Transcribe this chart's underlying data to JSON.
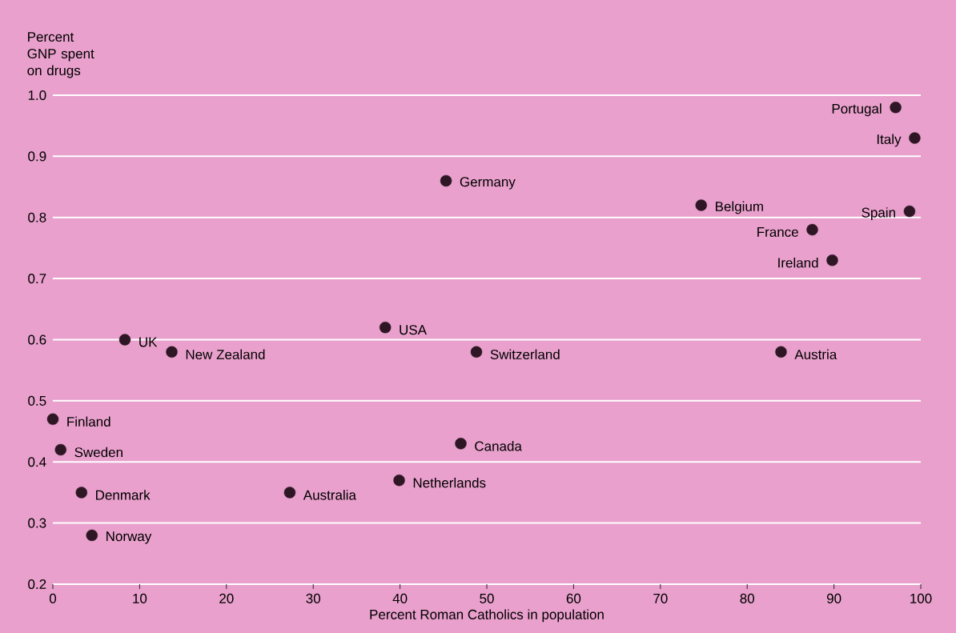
{
  "chart_data": {
    "type": "scatter",
    "xlabel": "Percent Roman Catholics in population",
    "ylabel": "Percent GNP spent on drugs",
    "x": [
      97.1,
      99.3,
      98.7,
      45.3,
      74.7,
      87.5,
      89.8,
      83.9,
      8.3,
      13.7,
      38.3,
      48.8,
      0,
      0.9,
      47,
      39.9,
      3.3,
      27.3,
      4.5
    ],
    "values": [
      0.98,
      0.93,
      0.81,
      0.86,
      0.82,
      0.78,
      0.73,
      0.58,
      0.6,
      0.58,
      0.62,
      0.58,
      0.47,
      0.42,
      0.43,
      0.37,
      0.35,
      0.35,
      0.28
    ],
    "color": "#2e1624",
    "grid": "y",
    "xlim": [
      0,
      100
    ],
    "ylim": [
      0.2,
      1.0
    ],
    "xticks": [
      0,
      10,
      20,
      30,
      40,
      50,
      60,
      70,
      80,
      90,
      100
    ],
    "yticks": [
      {
        "value": 0.2,
        "label": "0.2"
      },
      {
        "value": 0.3,
        "label": "0.3"
      },
      {
        "value": 0.4,
        "label": "0.4"
      },
      {
        "value": 0.5,
        "label": "0.5"
      },
      {
        "value": 0.6,
        "label": "0.6"
      },
      {
        "value": 0.7,
        "label": "0.7"
      },
      {
        "value": 0.8,
        "label": "0.8"
      },
      {
        "value": 0.9,
        "label": "0.9"
      },
      {
        "value": 1.0,
        "label": "1.0"
      }
    ],
    "annotations": [
      {
        "text": "Portugal",
        "x": 97.1,
        "y": 0.98
      },
      {
        "text": "Italy",
        "x": 99.3,
        "y": 0.93
      },
      {
        "text": "Spain",
        "x": 98.7,
        "y": 0.81
      },
      {
        "text": "Germany",
        "x": 45.3,
        "y": 0.86
      },
      {
        "text": "Belgium",
        "x": 74.7,
        "y": 0.82
      },
      {
        "text": "France",
        "x": 87.5,
        "y": 0.78
      },
      {
        "text": "Ireland",
        "x": 89.8,
        "y": 0.73
      },
      {
        "text": "Austria",
        "x": 83.9,
        "y": 0.58
      },
      {
        "text": "UK",
        "x": 8.3,
        "y": 0.6
      },
      {
        "text": "New Zealand",
        "x": 13.7,
        "y": 0.58
      },
      {
        "text": "USA",
        "x": 38.3,
        "y": 0.62
      },
      {
        "text": "Switzerland",
        "x": 48.8,
        "y": 0.58
      },
      {
        "text": "Finland",
        "x": 0,
        "y": 0.47
      },
      {
        "text": "Sweden",
        "x": 0.9,
        "y": 0.42
      },
      {
        "text": "Canada",
        "x": 47,
        "y": 0.43
      },
      {
        "text": "Netherlands",
        "x": 39.9,
        "y": 0.37
      },
      {
        "text": "Denmark",
        "x": 3.3,
        "y": 0.35
      },
      {
        "text": "Australia",
        "x": 27.3,
        "y": 0.35
      },
      {
        "text": "Norway",
        "x": 4.5,
        "y": 0.28
      }
    ]
  }
}
